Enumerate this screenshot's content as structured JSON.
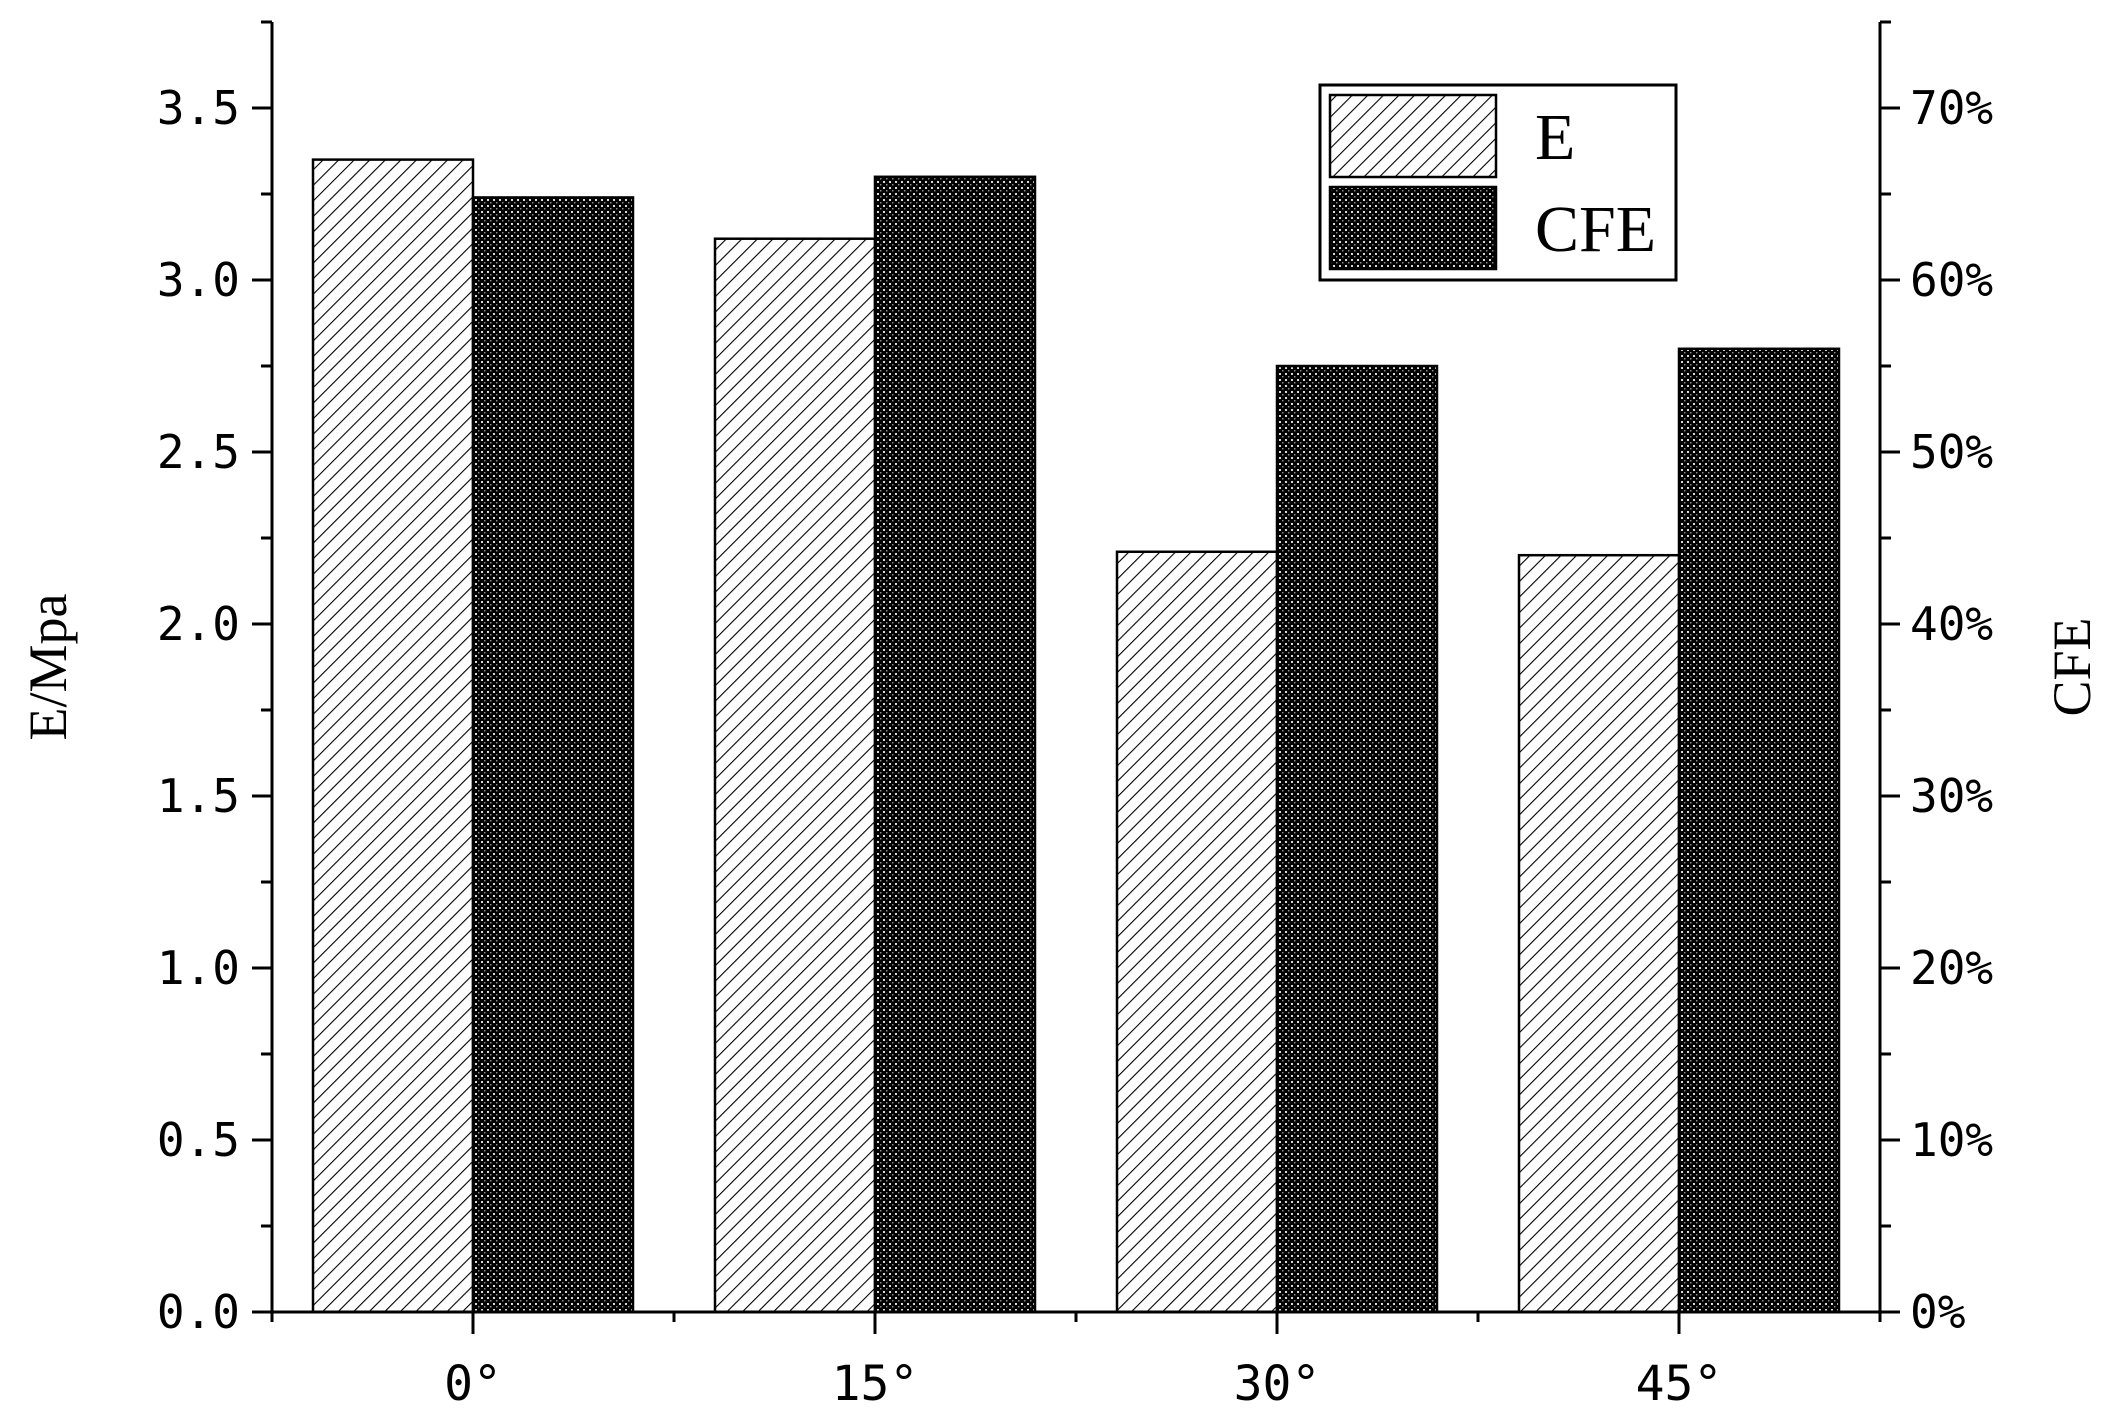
{
  "chart_data": {
    "type": "bar",
    "categories": [
      "0°",
      "15°",
      "30°",
      "45°"
    ],
    "series": [
      {
        "name": "E",
        "axis": "left",
        "values": [
          3.35,
          3.12,
          2.21,
          2.2
        ],
        "fill": "diagonal-hatch"
      },
      {
        "name": "CFE",
        "axis": "right",
        "values": [
          0.648,
          0.66,
          0.55,
          0.56
        ],
        "fill": "dense-dots"
      }
    ],
    "ylabel": "E/Mpa",
    "y2label": "CFE",
    "ylim": [
      0,
      3.75
    ],
    "y2lim": [
      0,
      0.75
    ],
    "yticks": [
      "0.0",
      "0.5",
      "1.0",
      "1.5",
      "2.0",
      "2.5",
      "3.0",
      "3.5"
    ],
    "y2ticks": [
      "0%",
      "10%",
      "20%",
      "30%",
      "40%",
      "50%",
      "60%",
      "70%"
    ],
    "legend": {
      "position": "top-right",
      "entries": [
        "E",
        "CFE"
      ]
    },
    "grid": false,
    "colors": {
      "axis": "#000000",
      "bar_stroke": "#000000",
      "background": "#ffffff"
    }
  }
}
